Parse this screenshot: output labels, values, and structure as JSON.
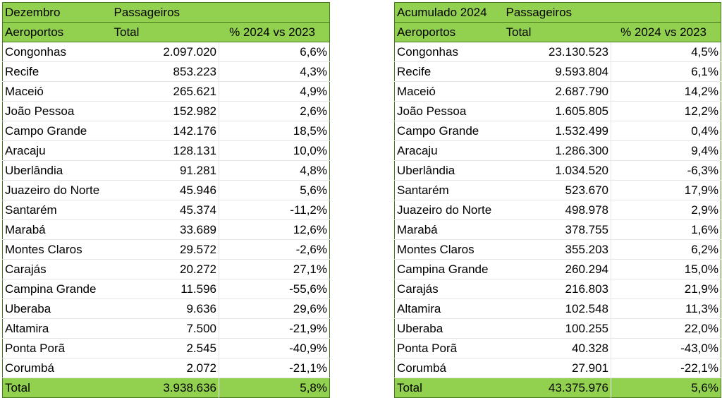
{
  "left": {
    "header1": [
      "Dezembro",
      "Passageiros",
      ""
    ],
    "header2": [
      "Aeroportos",
      "Total",
      "% 2024 vs 2023"
    ],
    "rows": [
      [
        "Congonhas",
        "2.097.020",
        "6,6%"
      ],
      [
        "Recife",
        "853.223",
        "4,3%"
      ],
      [
        "Maceió",
        "265.621",
        "4,9%"
      ],
      [
        "João Pessoa",
        "152.982",
        "2,6%"
      ],
      [
        "Campo Grande",
        "142.176",
        "18,5%"
      ],
      [
        "Aracaju",
        "128.131",
        "10,0%"
      ],
      [
        "Uberlândia",
        "91.281",
        "4,8%"
      ],
      [
        "Juazeiro do Norte",
        "45.946",
        "5,6%"
      ],
      [
        "Santarém",
        "45.374",
        "-11,2%"
      ],
      [
        "Marabá",
        "33.689",
        "12,6%"
      ],
      [
        "Montes Claros",
        "29.572",
        "-2,6%"
      ],
      [
        "Carajás",
        "20.272",
        "27,1%"
      ],
      [
        "Campina Grande",
        "11.596",
        "-55,6%"
      ],
      [
        "Uberaba",
        "9.636",
        "29,6%"
      ],
      [
        "Altamira",
        "7.500",
        "-21,9%"
      ],
      [
        "Ponta Porã",
        "2.545",
        "-40,9%"
      ],
      [
        "Corumbá",
        "2.072",
        "-21,1%"
      ]
    ],
    "total": [
      "Total",
      "3.938.636",
      "5,8%"
    ]
  },
  "right": {
    "header1": [
      "Acumulado 2024",
      "Passageiros",
      ""
    ],
    "header2": [
      "Aeroportos",
      "Total",
      "% 2024 vs 2023"
    ],
    "rows": [
      [
        "Congonhas",
        "23.130.523",
        "4,5%"
      ],
      [
        "Recife",
        "9.593.804",
        "6,1%"
      ],
      [
        "Maceió",
        "2.687.790",
        "14,2%"
      ],
      [
        "João Pessoa",
        "1.605.805",
        "12,2%"
      ],
      [
        "Campo Grande",
        "1.532.499",
        "0,4%"
      ],
      [
        "Aracaju",
        "1.286.300",
        "9,4%"
      ],
      [
        "Uberlândia",
        "1.034.520",
        "-6,3%"
      ],
      [
        "Santarém",
        "523.670",
        "17,9%"
      ],
      [
        "Juazeiro do Norte",
        "498.978",
        "2,9%"
      ],
      [
        "Marabá",
        "378.755",
        "1,6%"
      ],
      [
        "Montes Claros",
        "355.203",
        "6,2%"
      ],
      [
        "Campina Grande",
        "260.294",
        "15,0%"
      ],
      [
        "Carajás",
        "216.803",
        "21,9%"
      ],
      [
        "Altamira",
        "102.548",
        "11,3%"
      ],
      [
        "Uberaba",
        "100.255",
        "22,0%"
      ],
      [
        "Ponta Porã",
        "40.328",
        "-43,0%"
      ],
      [
        "Corumbá",
        "27.901",
        "-22,1%"
      ]
    ],
    "total": [
      "Total",
      "43.375.976",
      "5,6%"
    ]
  },
  "colors": {
    "header_green": "#92d050",
    "border_green": "#4a7a1e"
  }
}
